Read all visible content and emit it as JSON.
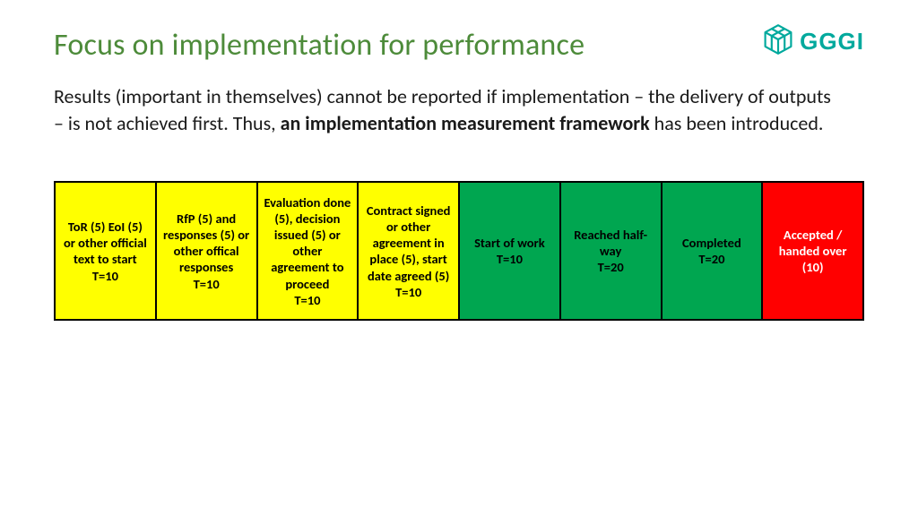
{
  "title": "Focus on implementation for performance",
  "logo_text": "GGGI",
  "body": {
    "pre": "Results (important in themselves) cannot be reported if implementation – the delivery of outputs – is not achieved first. Thus, ",
    "bold": "an implementation measurement framework",
    "post": " has been introduced."
  },
  "stages": [
    {
      "label": "ToR (5) EoI (5) or other official text to start\nT=10",
      "color": "yellow"
    },
    {
      "label": "RfP (5) and responses (5) or other offical responses\nT=10",
      "color": "yellow"
    },
    {
      "label": "Evaluation done (5), decision issued (5) or other agreement to proceed\nT=10",
      "color": "yellow"
    },
    {
      "label": "Contract signed or other agreement in place (5), start date agreed (5)\nT=10",
      "color": "yellow"
    },
    {
      "label": "Start of work\nT=10",
      "color": "green"
    },
    {
      "label": "Reached half-way\nT=20",
      "color": "green"
    },
    {
      "label": "Completed\nT=20",
      "color": "green"
    },
    {
      "label": "Accepted / handed over (10)",
      "color": "red"
    }
  ],
  "colors": {
    "title": "#4d8b3a",
    "logo": "#00a99d",
    "yellow": "#ffff00",
    "green": "#00a650",
    "red": "#ff0000",
    "border": "#000000",
    "body_text": "#1a1a1a"
  }
}
